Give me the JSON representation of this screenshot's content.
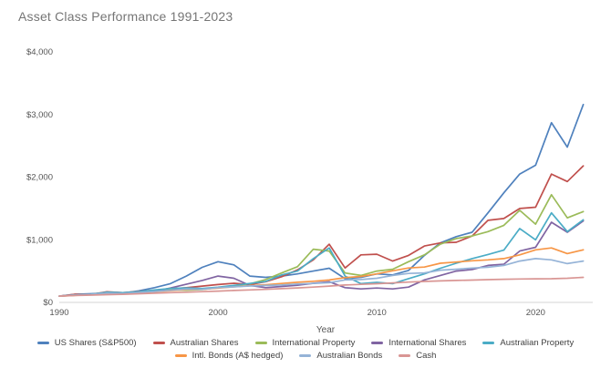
{
  "chart_data": {
    "type": "line",
    "title": "Asset Class Performance 1991-2023",
    "xlabel": "Year",
    "ylabel": "",
    "grid": false,
    "legend_position": "bottom",
    "xlim": [
      1990,
      2023.6
    ],
    "ylim": [
      0,
      4000
    ],
    "xticks": [
      1990,
      2000,
      2010,
      2020
    ],
    "yticks": [
      0,
      1000,
      2000,
      3000,
      4000
    ],
    "ytick_labels": [
      "$0",
      "$1,000",
      "$2,000",
      "$3,000",
      "$4,000"
    ],
    "x": [
      1990,
      1991,
      1992,
      1993,
      1994,
      1995,
      1996,
      1997,
      1998,
      1999,
      2000,
      2001,
      2002,
      2003,
      2004,
      2005,
      2006,
      2007,
      2008,
      2009,
      2010,
      2011,
      2012,
      2013,
      2014,
      2015,
      2016,
      2017,
      2018,
      2019,
      2020,
      2021,
      2022,
      2023
    ],
    "series": [
      {
        "name": "US Shares (S&P500)",
        "color": "#4F81BD",
        "values": [
          100,
          130,
          138,
          150,
          148,
          185,
          235,
          300,
          420,
          560,
          650,
          600,
          420,
          400,
          420,
          455,
          500,
          545,
          380,
          400,
          455,
          440,
          510,
          750,
          950,
          1050,
          1120,
          1430,
          1750,
          2050,
          2190,
          2870,
          2480,
          3160
        ]
      },
      {
        "name": "Australian Shares",
        "color": "#C0504D",
        "values": [
          100,
          130,
          128,
          168,
          155,
          175,
          195,
          215,
          235,
          260,
          285,
          305,
          285,
          330,
          410,
          520,
          680,
          930,
          550,
          760,
          770,
          660,
          750,
          900,
          950,
          960,
          1060,
          1310,
          1340,
          1500,
          1520,
          2050,
          1930,
          2180
        ]
      },
      {
        "name": "International Property",
        "color": "#9BBB59",
        "values": [
          100,
          115,
          125,
          140,
          148,
          162,
          185,
          200,
          195,
          205,
          235,
          265,
          295,
          365,
          470,
          570,
          850,
          820,
          470,
          430,
          500,
          530,
          650,
          760,
          930,
          1020,
          1060,
          1130,
          1230,
          1470,
          1250,
          1720,
          1350,
          1450
        ]
      },
      {
        "name": "International Shares",
        "color": "#8064A2",
        "values": [
          100,
          120,
          126,
          152,
          148,
          162,
          178,
          230,
          290,
          350,
          420,
          385,
          270,
          235,
          255,
          275,
          305,
          330,
          235,
          215,
          230,
          215,
          245,
          360,
          430,
          500,
          525,
          590,
          610,
          820,
          880,
          1280,
          1120,
          1300
        ]
      },
      {
        "name": "Australian Property",
        "color": "#4BACC6",
        "values": [
          100,
          120,
          130,
          162,
          155,
          172,
          200,
          222,
          232,
          222,
          242,
          272,
          302,
          335,
          440,
          500,
          700,
          870,
          420,
          300,
          320,
          300,
          380,
          455,
          545,
          625,
          700,
          765,
          835,
          1180,
          1000,
          1430,
          1130,
          1320
        ]
      },
      {
        "name": "Intl. Bonds (A$ hedged)",
        "color": "#F79646",
        "values": [
          100,
          112,
          124,
          138,
          136,
          154,
          170,
          188,
          205,
          208,
          228,
          248,
          268,
          282,
          302,
          322,
          338,
          358,
          395,
          415,
          455,
          505,
          550,
          565,
          625,
          645,
          665,
          680,
          700,
          760,
          840,
          870,
          780,
          840
        ]
      },
      {
        "name": "Australian Bonds",
        "color": "#95B3D7",
        "values": [
          100,
          116,
          128,
          148,
          141,
          158,
          174,
          194,
          212,
          210,
          235,
          248,
          262,
          270,
          278,
          294,
          304,
          314,
          360,
          365,
          385,
          430,
          462,
          472,
          515,
          530,
          548,
          562,
          590,
          660,
          700,
          680,
          620,
          660
        ]
      },
      {
        "name": "Cash",
        "color": "#D99694",
        "values": [
          100,
          110,
          117,
          123,
          129,
          138,
          147,
          155,
          163,
          171,
          181,
          190,
          199,
          208,
          219,
          231,
          244,
          260,
          278,
          288,
          298,
          312,
          324,
          334,
          343,
          350,
          357,
          363,
          369,
          374,
          377,
          378,
          385,
          400
        ]
      }
    ],
    "legend_rows": [
      [
        0,
        1,
        2,
        3,
        4
      ],
      [
        5,
        6,
        7
      ]
    ]
  }
}
